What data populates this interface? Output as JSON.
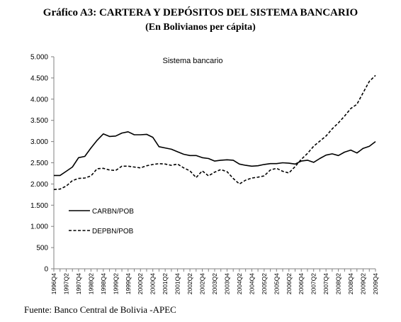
{
  "figure": {
    "title": "Gráfico A3: CARTERA Y DEPÓSITOS DEL SISTEMA BANCARIO",
    "subtitle": "(En Bolivianos per cápita)",
    "source": "Fuente: Banco Central de Bolivia -APEC"
  },
  "chart_data": {
    "type": "line",
    "title": "Sistema bancario",
    "xlabel": "",
    "ylabel": "",
    "ylim": [
      0,
      5000
    ],
    "yticks": [
      0,
      500,
      1000,
      1500,
      2000,
      2500,
      3000,
      3500,
      4000,
      4500,
      5000
    ],
    "ytick_labels": [
      "0",
      "500",
      "1.000",
      "1.500",
      "2.000",
      "2.500",
      "3.000",
      "3.500",
      "4.000",
      "4.500",
      "5.000"
    ],
    "x": [
      "1996Q4",
      "1997Q1",
      "1997Q2",
      "1997Q3",
      "1997Q4",
      "1998Q1",
      "1998Q2",
      "1998Q3",
      "1998Q4",
      "1999Q1",
      "1999Q2",
      "1999Q3",
      "1999Q4",
      "2000Q1",
      "2000Q2",
      "2000Q3",
      "2000Q4",
      "2001Q1",
      "2001Q2",
      "2001Q3",
      "2001Q4",
      "2002Q1",
      "2002Q2",
      "2002Q3",
      "2002Q4",
      "2003Q1",
      "2003Q2",
      "2003Q3",
      "2003Q4",
      "2004Q1",
      "2004Q2",
      "2004Q3",
      "2004Q4",
      "2005Q1",
      "2005Q2",
      "2005Q3",
      "2005Q4",
      "2006Q1",
      "2006Q2",
      "2006Q3",
      "2006Q4",
      "2007Q1",
      "2007Q2",
      "2007Q3",
      "2007Q4",
      "2008Q1",
      "2008Q2",
      "2008Q3",
      "2008Q4",
      "2009Q1",
      "2009Q2",
      "2009Q3",
      "2009Q4"
    ],
    "xtick_labels": [
      "1996Q4",
      "1997Q2",
      "1997Q4",
      "1998Q2",
      "1998Q4",
      "1999Q2",
      "1999Q4",
      "2000Q2",
      "2000Q4",
      "2001Q2",
      "2001Q4",
      "2002Q2",
      "2002Q4",
      "2003Q2",
      "2003Q4",
      "2004Q2",
      "2004Q4",
      "2005Q2",
      "2005Q4",
      "2006Q2",
      "2006Q4",
      "2007Q2",
      "2007Q4",
      "2008Q2",
      "2008Q4",
      "2009Q2",
      "2009Q4"
    ],
    "series": [
      {
        "name": "CARBN/POB",
        "style": "solid",
        "color": "#000000",
        "values": [
          2200,
          2200,
          2300,
          2400,
          2620,
          2650,
          2850,
          3030,
          3180,
          3120,
          3130,
          3200,
          3230,
          3160,
          3160,
          3170,
          3100,
          2880,
          2850,
          2820,
          2760,
          2700,
          2670,
          2670,
          2620,
          2600,
          2540,
          2560,
          2570,
          2560,
          2470,
          2440,
          2420,
          2430,
          2460,
          2480,
          2480,
          2500,
          2490,
          2470,
          2540,
          2560,
          2510,
          2600,
          2680,
          2710,
          2670,
          2750,
          2800,
          2730,
          2840,
          2890,
          3000
        ]
      },
      {
        "name": "DEPBN/POB",
        "style": "dashed",
        "color": "#000000",
        "values": [
          1870,
          1880,
          1950,
          2080,
          2130,
          2140,
          2190,
          2360,
          2370,
          2330,
          2320,
          2420,
          2420,
          2400,
          2380,
          2430,
          2460,
          2480,
          2470,
          2440,
          2470,
          2380,
          2310,
          2150,
          2310,
          2190,
          2280,
          2340,
          2290,
          2130,
          2000,
          2090,
          2140,
          2160,
          2190,
          2330,
          2370,
          2300,
          2260,
          2410,
          2580,
          2720,
          2890,
          3010,
          3130,
          3300,
          3440,
          3600,
          3780,
          3880,
          4150,
          4420,
          4560
        ]
      }
    ],
    "grid": false,
    "legend": "center-left"
  }
}
